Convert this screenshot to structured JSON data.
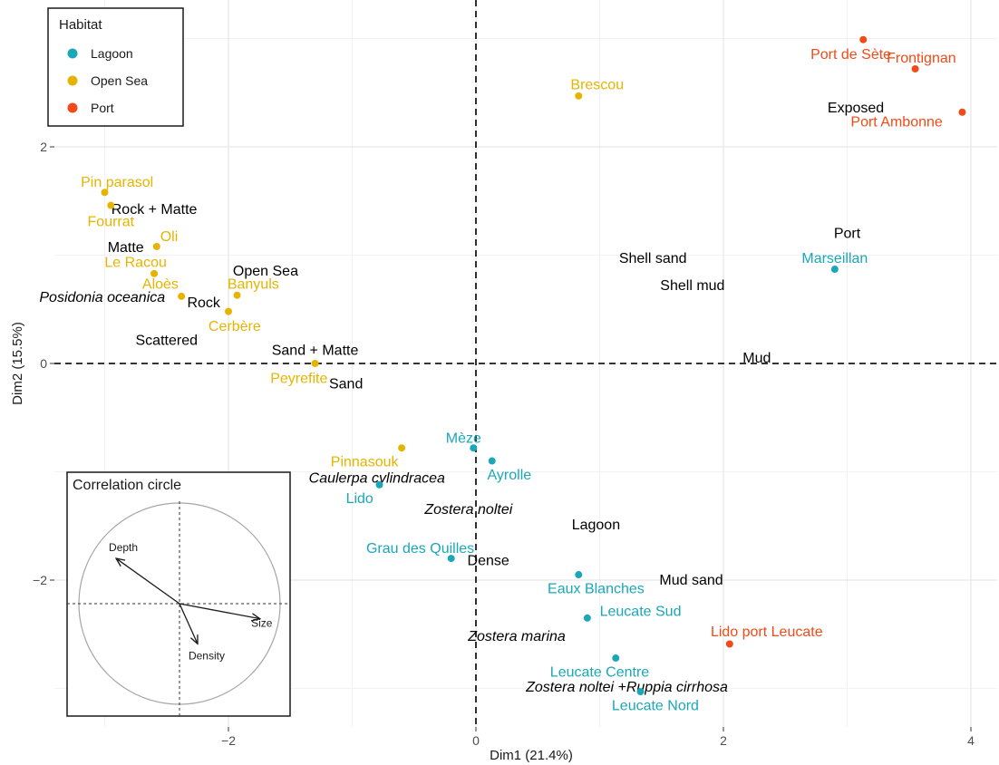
{
  "chart_data": {
    "type": "scatter",
    "xlabel": "Dim1 (21.4%)",
    "ylabel": "Dim2 (15.5%)",
    "xlim": [
      -3.4,
      4.2
    ],
    "ylim": [
      -3.3,
      3.3
    ],
    "x_ticks": [
      -2,
      0,
      2,
      4
    ],
    "y_ticks": [
      -2,
      0,
      2
    ],
    "x_tick_labels": [
      "−2",
      "0",
      "2",
      "4"
    ],
    "y_tick_labels": [
      "−2",
      "0",
      "2"
    ],
    "grid": true,
    "reference_lines": {
      "x": 0,
      "y": 0,
      "style": "dashed"
    },
    "colors": {
      "Lagoon": "#1aa7b8",
      "Open Sea": "#e6b400",
      "Port": "#f24a18",
      "category_text": "#000000"
    },
    "legend": {
      "title": "Habitat",
      "placement": "top-left",
      "entries": [
        {
          "name": "Lagoon",
          "color": "#1aa7b8"
        },
        {
          "name": "Open Sea",
          "color": "#e6b400"
        },
        {
          "name": "Port",
          "color": "#f24a18"
        }
      ]
    },
    "sites": [
      {
        "label": "Pin parasol",
        "habitat": "Open Sea",
        "x": -3.0,
        "y": 1.58,
        "lx": -2.9,
        "ly": 1.68
      },
      {
        "label": "Fourrat",
        "habitat": "Open Sea",
        "x": -2.95,
        "y": 1.46,
        "lx": -2.95,
        "ly": 1.32
      },
      {
        "label": "Oli",
        "habitat": "Open Sea",
        "x": -2.58,
        "y": 1.08,
        "lx": -2.48,
        "ly": 1.18
      },
      {
        "label": "Le Racou",
        "habitat": "Open Sea",
        "x": -2.6,
        "y": 0.83,
        "lx": -2.75,
        "ly": 0.94
      },
      {
        "label": "Aloès",
        "habitat": "Open Sea",
        "x": -2.38,
        "y": 0.62,
        "lx": -2.55,
        "ly": 0.74
      },
      {
        "label": "Banyuls",
        "habitat": "Open Sea",
        "x": -1.93,
        "y": 0.63,
        "lx": -1.8,
        "ly": 0.74
      },
      {
        "label": "Cerbère",
        "habitat": "Open Sea",
        "x": -2.0,
        "y": 0.48,
        "lx": -1.95,
        "ly": 0.35
      },
      {
        "label": "Peyrefite",
        "habitat": "Open Sea",
        "x": -1.3,
        "y": 0.0,
        "lx": -1.43,
        "ly": -0.13
      },
      {
        "label": "Brescou",
        "habitat": "Open Sea",
        "x": 0.83,
        "y": 2.47,
        "lx": 0.98,
        "ly": 2.58
      },
      {
        "label": "Pinnasouk",
        "habitat": "Open Sea",
        "x": -0.6,
        "y": -0.78,
        "lx": -0.9,
        "ly": -0.9
      },
      {
        "label": "Mèze",
        "habitat": "Lagoon",
        "x": -0.02,
        "y": -0.78,
        "lx": -0.1,
        "ly": -0.68
      },
      {
        "label": "Ayrolle",
        "habitat": "Lagoon",
        "x": 0.13,
        "y": -0.9,
        "lx": 0.27,
        "ly": -1.02
      },
      {
        "label": "Lido",
        "habitat": "Lagoon",
        "x": -0.78,
        "y": -1.12,
        "lx": -0.94,
        "ly": -1.24
      },
      {
        "label": "Grau des Quilles",
        "habitat": "Lagoon",
        "x": -0.2,
        "y": -1.8,
        "lx": -0.45,
        "ly": -1.7
      },
      {
        "label": "Eaux Blanches",
        "habitat": "Lagoon",
        "x": 0.83,
        "y": -1.95,
        "lx": 0.97,
        "ly": -2.07
      },
      {
        "label": "Leucate Sud",
        "habitat": "Lagoon",
        "x": 0.9,
        "y": -2.35,
        "lx": 1.33,
        "ly": -2.28
      },
      {
        "label": "Leucate Centre",
        "habitat": "Lagoon",
        "x": 1.13,
        "y": -2.72,
        "lx": 1.0,
        "ly": -2.84
      },
      {
        "label": "Leucate Nord",
        "habitat": "Lagoon",
        "x": 1.33,
        "y": -3.03,
        "lx": 1.45,
        "ly": -3.15
      },
      {
        "label": "Marseillan",
        "habitat": "Lagoon",
        "x": 2.9,
        "y": 0.87,
        "lx": 2.9,
        "ly": 0.98
      },
      {
        "label": "Port de Sète",
        "habitat": "Port",
        "x": 3.13,
        "y": 2.99,
        "lx": 3.03,
        "ly": 2.86
      },
      {
        "label": "Frontignan",
        "habitat": "Port",
        "x": 3.55,
        "y": 2.72,
        "lx": 3.6,
        "ly": 2.83
      },
      {
        "label": "Port Ambonne",
        "habitat": "Port",
        "x": 3.93,
        "y": 2.32,
        "lx": 3.4,
        "ly": 2.24
      },
      {
        "label": "Lido port Leucate",
        "habitat": "Port",
        "x": 2.05,
        "y": -2.59,
        "lx": 2.35,
        "ly": -2.47
      }
    ],
    "categories": [
      {
        "label": "Exposed",
        "x": 3.07,
        "y": 2.37,
        "italic": false
      },
      {
        "label": "Rock + Matte",
        "x": -2.6,
        "y": 1.43,
        "italic": false
      },
      {
        "label": "Matte",
        "x": -2.83,
        "y": 1.08,
        "italic": false
      },
      {
        "label": "Posidonia oceanica",
        "x": -3.02,
        "y": 0.62,
        "italic": true
      },
      {
        "label": "Rock",
        "x": -2.2,
        "y": 0.57,
        "italic": false
      },
      {
        "label": "Open Sea",
        "x": -1.7,
        "y": 0.86,
        "italic": false
      },
      {
        "label": "Scattered",
        "x": -2.5,
        "y": 0.22,
        "italic": false
      },
      {
        "label": "Sand + Matte",
        "x": -1.3,
        "y": 0.13,
        "italic": false
      },
      {
        "label": "Sand",
        "x": -1.05,
        "y": -0.18,
        "italic": false
      },
      {
        "label": "Port",
        "x": 3.0,
        "y": 1.21,
        "italic": false
      },
      {
        "label": "Shell sand",
        "x": 1.43,
        "y": 0.98,
        "italic": false
      },
      {
        "label": "Shell mud",
        "x": 1.75,
        "y": 0.73,
        "italic": false
      },
      {
        "label": "Mud",
        "x": 2.27,
        "y": 0.06,
        "italic": false
      },
      {
        "label": "Caulerpa cylindracea",
        "x": -0.8,
        "y": -1.05,
        "italic": true
      },
      {
        "label": "Zostera noltei",
        "x": -0.06,
        "y": -1.34,
        "italic": true
      },
      {
        "label": "Lagoon",
        "x": 0.97,
        "y": -1.48,
        "italic": false
      },
      {
        "label": "Dense",
        "x": 0.1,
        "y": -1.81,
        "italic": false
      },
      {
        "label": "Mud sand",
        "x": 1.74,
        "y": -1.99,
        "italic": false
      },
      {
        "label": "Zostera marina",
        "x": 0.33,
        "y": -2.51,
        "italic": true
      },
      {
        "label": "Zostera noltei +Ruppia cirrhosa",
        "x": 1.22,
        "y": -2.98,
        "italic": true
      }
    ],
    "inset": {
      "title": "Correlation circle",
      "vectors": [
        {
          "name": "Depth",
          "x": -0.63,
          "y": 0.45
        },
        {
          "name": "Size",
          "x": 0.8,
          "y": -0.15
        },
        {
          "name": "Density",
          "x": 0.18,
          "y": -0.4
        }
      ]
    }
  }
}
